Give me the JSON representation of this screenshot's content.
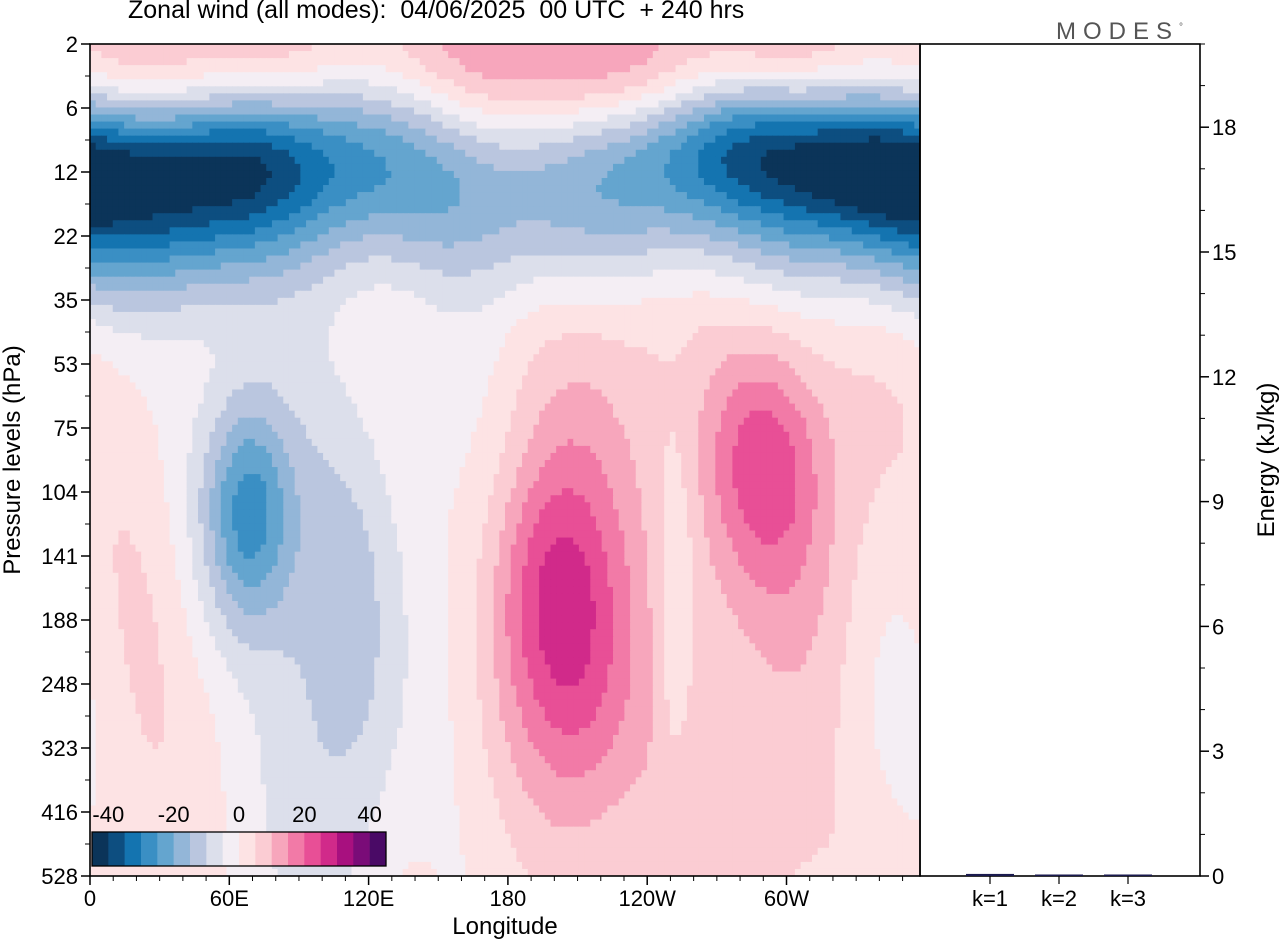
{
  "title": "Zonal wind (all modes):  04/06/2025  00 UTC  + 240 hrs",
  "brand": "MODES",
  "brand_mark": "°",
  "chart_data": [
    {
      "type": "heatmap",
      "title": "Zonal wind (all modes):  04/06/2025  00 UTC  + 240 hrs",
      "xlabel": "Longitude",
      "ylabel": "Pressure levels (hPa)",
      "x_ticks": [
        "0",
        "60E",
        "120E",
        "180",
        "120W",
        "60W"
      ],
      "x_tick_degrees": [
        0,
        60,
        120,
        180,
        240,
        300
      ],
      "xlim": [
        0,
        357.5
      ],
      "y_ticks": [
        "2",
        "6",
        "12",
        "22",
        "35",
        "53",
        "75",
        "104",
        "141",
        "188",
        "248",
        "323",
        "416",
        "528"
      ],
      "colorbar": {
        "ticks": [
          "-40",
          "-20",
          "0",
          "20",
          "40"
        ],
        "levels": [
          -45,
          -40,
          -35,
          -30,
          -25,
          -20,
          -15,
          -10,
          -5,
          0,
          5,
          10,
          15,
          20,
          25,
          30,
          35,
          40,
          45
        ],
        "colors": [
          "#0b3459",
          "#0d4e80",
          "#1474b0",
          "#3a8fc4",
          "#64a5cf",
          "#93b6d8",
          "#bac6df",
          "#dcdfeb",
          "#f4eef4",
          "#fde3e4",
          "#fbccd3",
          "#f7a6bc",
          "#f27aa7",
          "#e84f96",
          "#d12a8a",
          "#a8107f",
          "#7a0c78",
          "#4a0a66"
        ]
      },
      "features": [
        {
          "region": "stratospheric easterly band",
          "pressure_hPa": [
            8,
            30
          ],
          "u_min": -40
        },
        {
          "region": "upper westerly band",
          "pressure_hPa": [
            2,
            5
          ],
          "u_max": 20
        },
        {
          "region": "easterly core near 70E",
          "pressure_hPa": [
            90,
            160
          ],
          "u_min": -27
        },
        {
          "region": "westerly core near 200E",
          "pressure_hPa": [
            120,
            230
          ],
          "u_max": 17
        },
        {
          "region": "westerly core near 290E",
          "pressure_hPa": [
            75,
            120
          ],
          "u_max": 17
        }
      ]
    },
    {
      "type": "bar",
      "categories": [
        "k=1",
        "k=2",
        "k=3"
      ],
      "values": [
        0.05,
        0.03,
        0.01
      ],
      "ylabel": "Energy (kJ/kg)",
      "y_ticks": [
        "0",
        "3",
        "6",
        "9",
        "12",
        "15",
        "18"
      ],
      "ylim": [
        0,
        20
      ]
    }
  ]
}
